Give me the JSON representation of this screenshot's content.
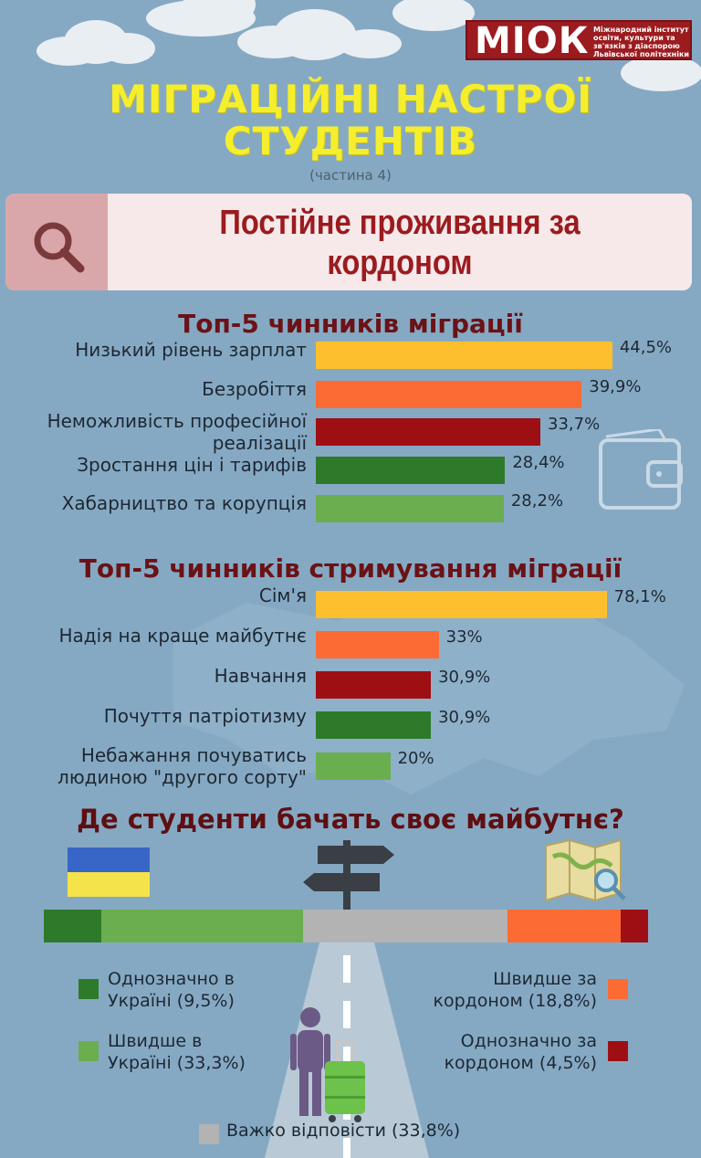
{
  "logo": {
    "name": "МІОК",
    "subtitle": "Міжнародний інститут освіти, культури та зв'язків з діаспорою Львівської політехніки"
  },
  "header": {
    "title_line1": "МІГРАЦІЙНІ НАСТРОЇ",
    "title_line2": "СТУДЕНТІВ",
    "part": "(частина 4)"
  },
  "banner": {
    "icon": "search-icon",
    "line1": "Постійне проживання за",
    "line2": "кордоном"
  },
  "colors": {
    "background": "#86a9c3",
    "yellow": "#fdbf2d",
    "orange": "#fd6b35",
    "dark_red": "#9e0f14",
    "dark_green": "#2d7a2b",
    "light_green": "#6aae4f",
    "gray": "#b3b3b3",
    "title_yellow": "#f5ee2c"
  },
  "chart_data": [
    {
      "type": "bar",
      "title": "Топ-5 чинників міграції",
      "categories": [
        "Низький рівень зарплат",
        "Безробіття",
        "Неможливість професійної реалізації",
        "Зростання цін і тарифів",
        "Хабарництво та корупція"
      ],
      "category_lines": [
        [
          "Низький рівень зарплат"
        ],
        [
          "Безробіття"
        ],
        [
          "Неможливість професійної",
          "реалізації"
        ],
        [
          "Зростання цін і тарифів"
        ],
        [
          "Хабарництво та корупція"
        ]
      ],
      "values": [
        44.5,
        39.9,
        33.7,
        28.4,
        28.2
      ],
      "value_labels": [
        "44,5%",
        "39,9%",
        "33,7%",
        "28,4%",
        "28,2%"
      ],
      "bar_colors": [
        "#fdbf2d",
        "#fd6b35",
        "#9e0f14",
        "#2d7a2b",
        "#6aae4f"
      ],
      "orientation": "horizontal",
      "unit": "%"
    },
    {
      "type": "bar",
      "title": "Топ-5 чинників стримування міграції",
      "categories": [
        "Сім'я",
        "Надія на краще майбутнє",
        "Навчання",
        "Почуття патріотизму",
        "Небажання почуватись людиною \"другого сорту\""
      ],
      "category_lines": [
        [
          "Сім'я"
        ],
        [
          "Надія на краще майбутнє"
        ],
        [
          "Навчання"
        ],
        [
          "Почуття патріотизму"
        ],
        [
          "Небажання почуватись",
          "людиною \"другого сорту\""
        ]
      ],
      "values": [
        78.1,
        33,
        30.9,
        30.9,
        20
      ],
      "value_labels": [
        "78,1%",
        "33%",
        "30,9%",
        "30,9%",
        "20%"
      ],
      "bar_colors": [
        "#fdbf2d",
        "#fd6b35",
        "#9e0f14",
        "#2d7a2b",
        "#6aae4f"
      ],
      "orientation": "horizontal",
      "unit": "%"
    },
    {
      "type": "bar",
      "subtype": "stacked-100",
      "title": "Де студенти бачать своє майбутнє?",
      "categories": [
        "Однозначно в Україні",
        "Швидше в Україні",
        "Важко відповісти",
        "Швидше за кордоном",
        "Однозначно за кордоном"
      ],
      "values": [
        9.5,
        33.3,
        33.8,
        18.8,
        4.5
      ],
      "legend_lines": [
        [
          "Однозначно в",
          "Україні (9,5%)"
        ],
        [
          "Швидше в",
          "Україні (33,3%)"
        ],
        [
          "Важко відповісти (33,8%)"
        ],
        [
          "Швидше за",
          "кордоном (18,8%)"
        ],
        [
          "Однозначно за",
          "кордоном (4,5%)"
        ]
      ],
      "bar_colors": [
        "#2d7a2b",
        "#6aae4f",
        "#b3b3b3",
        "#fd6b35",
        "#9e0f14"
      ],
      "unit": "%"
    }
  ],
  "icons": [
    "search-icon",
    "wallet-icon",
    "ukraine-flag-icon",
    "signpost-icon",
    "map-icon",
    "traveler-icon",
    "suitcase-icon",
    "road-icon"
  ]
}
